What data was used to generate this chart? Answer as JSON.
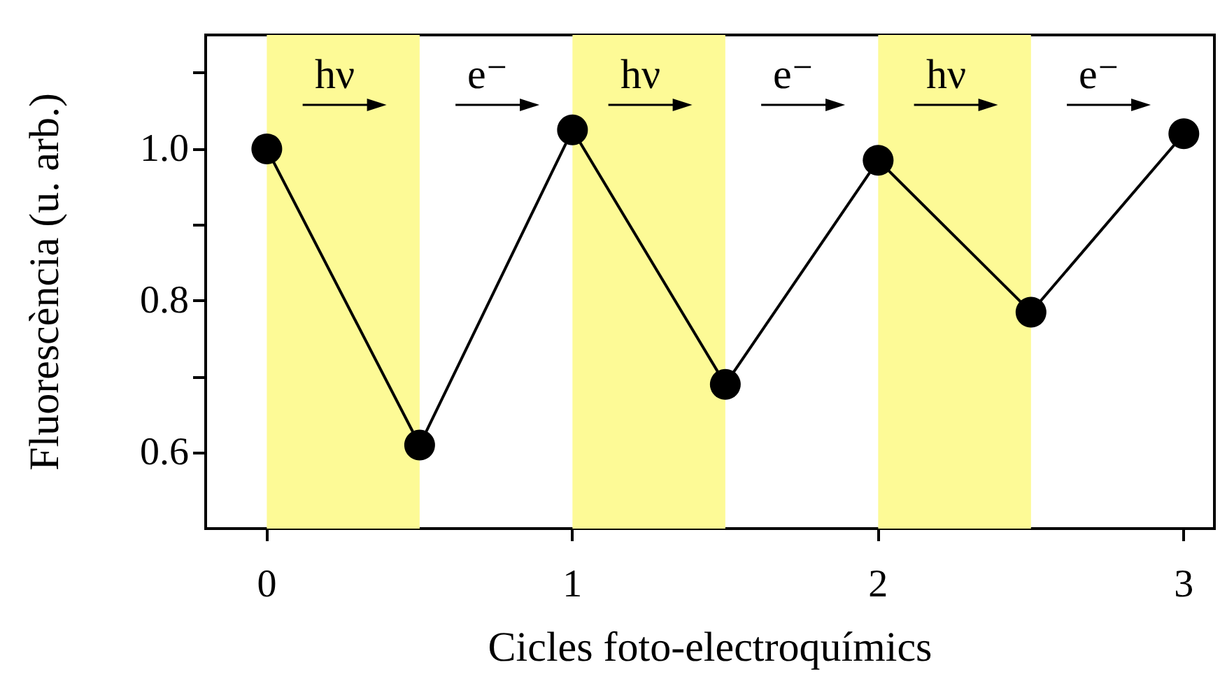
{
  "chart_data": {
    "type": "line",
    "xlabel": "Cicles foto-electroquímics",
    "ylabel": "Fluorescència (u. arb.)",
    "x": [
      0,
      0.5,
      1,
      1.5,
      2,
      2.5,
      3
    ],
    "series": [
      {
        "color": "#000000",
        "values": [
          1.0,
          0.61,
          1.025,
          0.69,
          0.985,
          0.785,
          1.02
        ]
      }
    ],
    "xlim": [
      -0.2,
      3.1
    ],
    "xticks": [
      0,
      1,
      2,
      3
    ],
    "ylim": [
      0.5,
      1.15
    ],
    "yticks": [
      {
        "value": 0.6,
        "label": "0.6"
      },
      {
        "value": 0.7,
        "label": null
      },
      {
        "value": 0.8,
        "label": "0.8"
      },
      {
        "value": 0.9,
        "label": null
      },
      {
        "value": 1.0,
        "label": "1.0"
      },
      {
        "value": 1.1,
        "label": null
      }
    ],
    "bands": [
      {
        "axis": "x",
        "from": 0,
        "to": 0.5,
        "color": "#fdfa96",
        "label": "hν"
      },
      {
        "axis": "x",
        "from": 1,
        "to": 1.5,
        "color": "#fdfa96",
        "label": "hν"
      },
      {
        "axis": "x",
        "from": 2,
        "to": 2.5,
        "color": "#fdfa96",
        "label": "hν"
      }
    ],
    "annotations": [
      "e⁻",
      "e⁻",
      "e⁻"
    ],
    "marker": "circle"
  }
}
